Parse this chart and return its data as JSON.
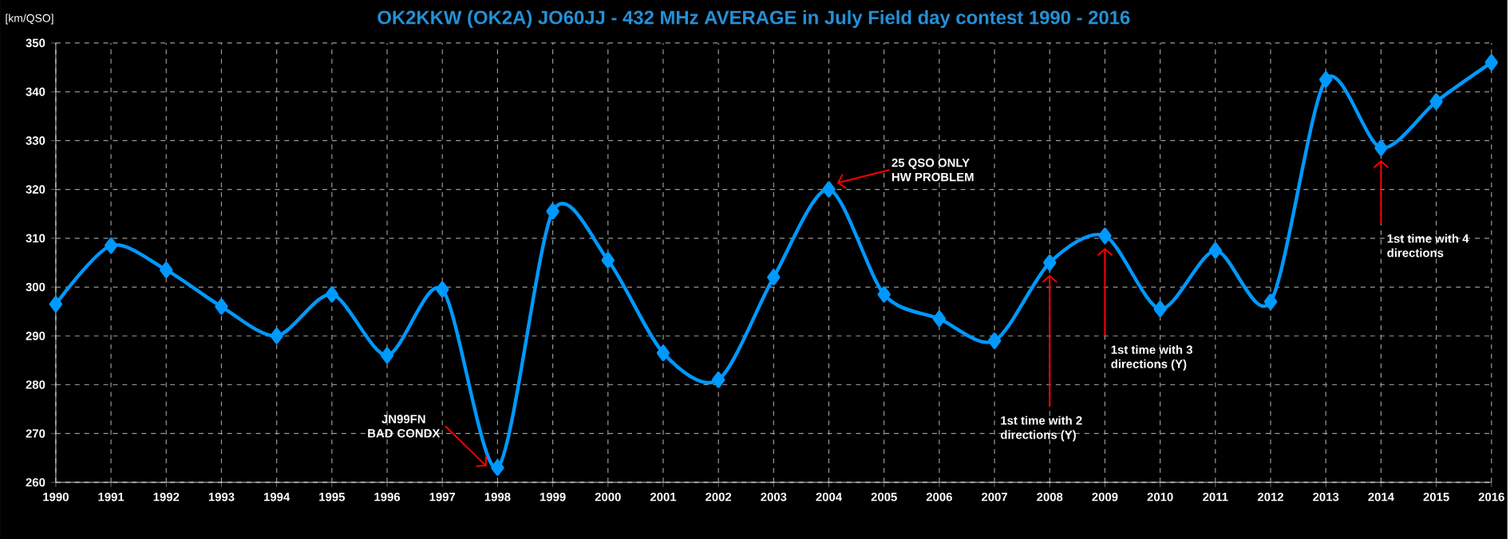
{
  "chart_data": {
    "type": "line",
    "title": "OK2KKW (OK2A) JO60JJ - 432 MHz AVERAGE in July Field day contest 1990 - 2016",
    "ylabel": "[km/QSO]",
    "x": [
      1990,
      1991,
      1992,
      1993,
      1994,
      1995,
      1996,
      1997,
      1998,
      1999,
      2000,
      2001,
      2002,
      2003,
      2004,
      2005,
      2006,
      2007,
      2008,
      2009,
      2010,
      2011,
      2012,
      2013,
      2014,
      2015,
      2016
    ],
    "values": [
      296.5,
      308.5,
      303.5,
      296,
      290,
      298.5,
      286,
      299.5,
      263,
      315.5,
      305.5,
      286.5,
      281,
      302,
      320,
      298.5,
      293.5,
      289,
      305,
      310.5,
      295.5,
      307.5,
      297,
      342.5,
      328.5,
      338,
      346
    ],
    "color": "#0099ff",
    "marker": "diamond",
    "line_style": "solid",
    "grid": true,
    "xlim": [
      1990,
      2016
    ],
    "xticks": [
      1990,
      1991,
      1992,
      1993,
      1994,
      1995,
      1996,
      1997,
      1998,
      1999,
      2000,
      2001,
      2002,
      2003,
      2004,
      2005,
      2006,
      2007,
      2008,
      2009,
      2010,
      2011,
      2012,
      2013,
      2014,
      2015,
      2016
    ],
    "ylim": [
      260,
      350
    ],
    "yticks": [
      260,
      270,
      280,
      290,
      300,
      310,
      320,
      330,
      340,
      350
    ],
    "annotations": [
      {
        "text": "JN99FN BAD CONDX",
        "x": 1998,
        "y": 263
      },
      {
        "text": "25 QSO ONLY HW PROBLEM",
        "x": 2004,
        "y": 320
      },
      {
        "text": "1st time with 2 directions (Y)",
        "x": 2008,
        "y": 305
      },
      {
        "text": "1st time with 3 directions (Y)",
        "x": 2009,
        "y": 310.5
      },
      {
        "text": "1st time with 4 directions",
        "x": 2014,
        "y": 328.5
      }
    ]
  }
}
